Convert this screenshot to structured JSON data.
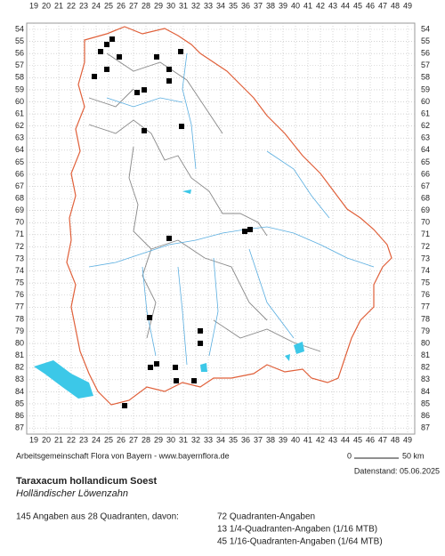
{
  "map": {
    "xticks": [
      19,
      20,
      21,
      22,
      23,
      24,
      25,
      26,
      27,
      28,
      29,
      30,
      31,
      32,
      33,
      34,
      35,
      36,
      37,
      38,
      39,
      40,
      41,
      42,
      43,
      44,
      45,
      46,
      47,
      48,
      49
    ],
    "yticks": [
      54,
      55,
      56,
      57,
      58,
      59,
      60,
      61,
      62,
      63,
      64,
      65,
      66,
      67,
      68,
      69,
      70,
      71,
      72,
      73,
      74,
      75,
      76,
      77,
      78,
      79,
      80,
      81,
      82,
      83,
      84,
      85,
      86,
      87
    ],
    "points": [
      [
        25.29,
        54.81
      ],
      [
        24.86,
        55.25
      ],
      [
        28.86,
        56.28
      ],
      [
        30.79,
        55.84
      ],
      [
        24.36,
        55.84
      ],
      [
        25.86,
        56.28
      ],
      [
        29.86,
        57.31
      ],
      [
        24.86,
        57.31
      ],
      [
        23.86,
        57.9
      ],
      [
        29.86,
        58.27
      ],
      [
        27.29,
        59.23
      ],
      [
        27.86,
        59.01
      ],
      [
        27.86,
        62.39
      ],
      [
        30.86,
        62.03
      ],
      [
        29.86,
        71.3
      ],
      [
        35.93,
        70.72
      ],
      [
        36.36,
        70.57
      ],
      [
        28.29,
        77.86
      ],
      [
        32.36,
        78.96
      ],
      [
        32.36,
        79.99
      ],
      [
        28.86,
        81.69
      ],
      [
        28.36,
        81.98
      ],
      [
        30.36,
        81.98
      ],
      [
        30.43,
        83.09
      ],
      [
        31.86,
        83.09
      ],
      [
        26.29,
        85.15
      ]
    ]
  },
  "footer": {
    "credit": "Arbeitsgemeinschaft Flora von Bayern - www.bayernflora.de",
    "scale_start": "0",
    "scale_end": "50 km",
    "date": "Datenstand: 05.06.2025",
    "title": "Taraxacum hollandicum Soest",
    "subtitle": "Holländischer Löwenzahn",
    "summary": "145 Angaben aus 28 Quadranten, davon:",
    "details": [
      "72 Quadranten-Angaben",
      "13 1/4-Quadranten-Angaben (1/16 MTB)",
      "45 1/16-Quadranten-Angaben (1/64 MTB)"
    ]
  }
}
